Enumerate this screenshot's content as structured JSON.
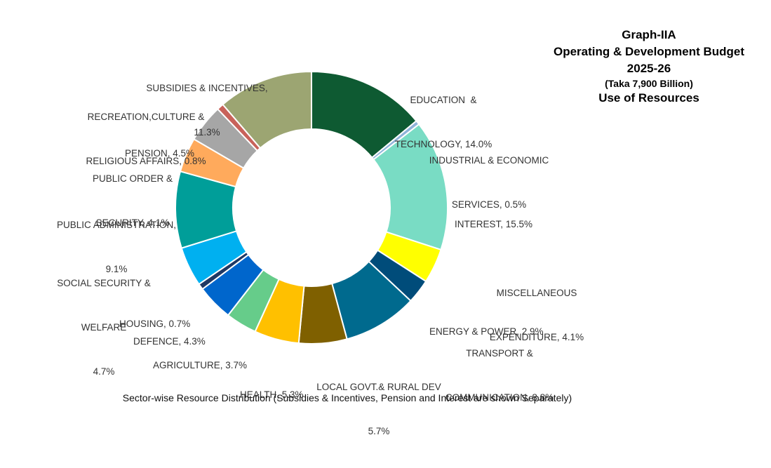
{
  "chart_data": {
    "type": "pie",
    "variant": "donut",
    "title_lines": [
      "Graph-IIA",
      "Operating & Development Budget",
      "2025-26",
      "(Taka 7,900 Billion)",
      "Use of Resources"
    ],
    "caption": "Sector-wise Resource Distribution (Subsidies & Incentives, Pension and Interest are shown Separately)",
    "slices": [
      {
        "name": "EDUCATION  & TECHNOLOGY",
        "value": 14.0,
        "label_lines": [
          "EDUCATION  &",
          "TECHNOLOGY, 14.0%"
        ],
        "color": "#0e5a32"
      },
      {
        "name": "INDUSTRIAL & ECONOMIC SERVICES",
        "value": 0.5,
        "label_lines": [
          "INDUSTRIAL & ECONOMIC",
          "SERVICES, 0.5%"
        ],
        "color": "#8fb3d9"
      },
      {
        "name": "INTEREST",
        "value": 15.5,
        "label_lines": [
          "INTEREST, 15.5%"
        ],
        "color": "#79dcc4"
      },
      {
        "name": "MISCELLANEOUS EXPENDITURE",
        "value": 4.1,
        "label_lines": [
          "MISCELLANEOUS",
          "EXPENDITURE, 4.1%"
        ],
        "color": "#ffff00"
      },
      {
        "name": "ENERGY & POWER",
        "value": 2.9,
        "label_lines": [
          "ENERGY & POWER, 2.9%"
        ],
        "color": "#004c7a"
      },
      {
        "name": "TRANSPORT & COMMUNICATION",
        "value": 8.8,
        "label_lines": [
          "TRANSPORT &",
          "COMMUNICATION, 8.8%"
        ],
        "color": "#006a8e"
      },
      {
        "name": "LOCAL GOVT.& RURAL DEV",
        "value": 5.7,
        "label_lines": [
          "LOCAL GOVT.& RURAL DEV",
          "5.7%"
        ],
        "color": "#7f6000"
      },
      {
        "name": "HEALTH",
        "value": 5.3,
        "label_lines": [
          "HEALTH, 5.3%"
        ],
        "color": "#ffc000"
      },
      {
        "name": "AGRICULTURE",
        "value": 3.7,
        "label_lines": [
          "AGRICULTURE, 3.7%"
        ],
        "color": "#66cc8a"
      },
      {
        "name": "DEFENCE",
        "value": 4.3,
        "label_lines": [
          "DEFENCE, 4.3%"
        ],
        "color": "#0066cc"
      },
      {
        "name": "HOUSING",
        "value": 0.7,
        "label_lines": [
          "HOUSING, 0.7%"
        ],
        "color": "#1f3864"
      },
      {
        "name": "SOCIAL SECURITY & WELFARE",
        "value": 4.7,
        "label_lines": [
          "SOCIAL SECURITY &",
          "WELFARE",
          "4.7%"
        ],
        "color": "#00b0f0"
      },
      {
        "name": "PUBLIC ADMINISTRATION",
        "value": 9.1,
        "label_lines": [
          "PUBLIC ADMINISTRATION,",
          "9.1%"
        ],
        "color": "#009e99"
      },
      {
        "name": "PUBLIC ORDER & SECURITY",
        "value": 4.1,
        "label_lines": [
          "PUBLIC ORDER &",
          "SECURITY, 4.1%"
        ],
        "color": "#ffaa5c"
      },
      {
        "name": "PENSION",
        "value": 4.5,
        "label_lines": [
          "PENSION, 4.5%"
        ],
        "color": "#a6a6a6"
      },
      {
        "name": "RECREATION,CULTURE & RELIGIOUS AFFAIRS",
        "value": 0.8,
        "label_lines": [
          "RECREATION,CULTURE &",
          "RELIGIOUS AFFAIRS, 0.8%"
        ],
        "color": "#c8625a"
      },
      {
        "name": "SUBSIDIES & INCENTIVES",
        "value": 11.3,
        "label_lines": [
          "SUBSIDIES & INCENTIVES,",
          "11.3%"
        ],
        "color": "#9ca572"
      }
    ]
  }
}
